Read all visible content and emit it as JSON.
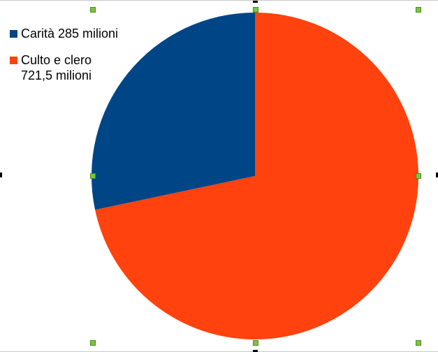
{
  "chart_data": {
    "type": "pie",
    "title": "",
    "series": [
      {
        "name": "",
        "values": [
          285,
          721.5
        ],
        "labels": [
          "Carità 285 milioni",
          "Culto e clero 721,5 milioni"
        ]
      }
    ],
    "slices": [
      {
        "label": "Carità 285 milioni",
        "value": 285,
        "color": "#004586"
      },
      {
        "label": "Culto e clero 721,5 milioni",
        "value": 721.5,
        "color": "#ff420e"
      }
    ],
    "legend": {
      "position": "top-left",
      "items": [
        {
          "label": "Carità 285 milioni",
          "color": "#004586"
        },
        {
          "label": "Culto e clero 721,5 milioni",
          "color": "#ff420e"
        }
      ]
    },
    "start_angle": "12 o'clock",
    "direction": "clockwise for Culto e clero, Carità on left"
  },
  "selection": {
    "handle_color": "#79c542",
    "selected": true
  }
}
